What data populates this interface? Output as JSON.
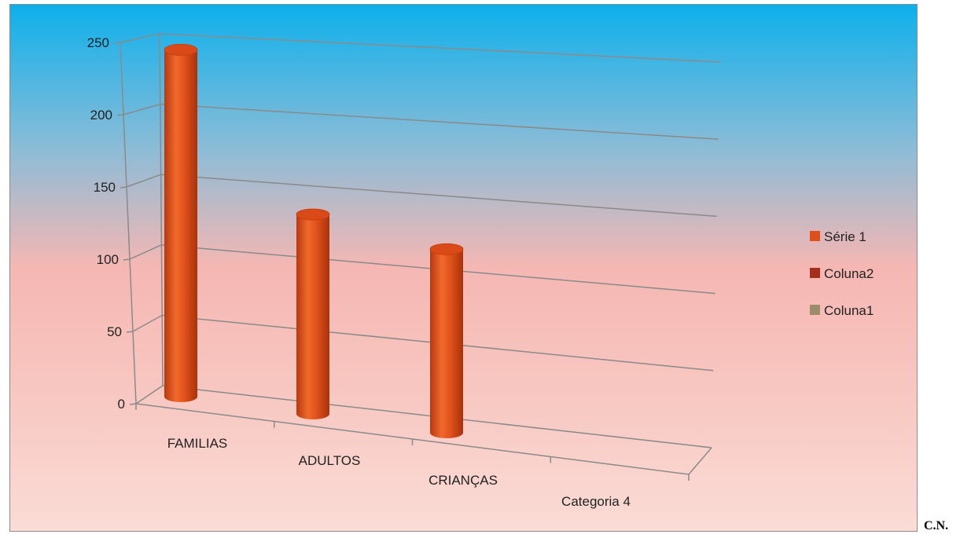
{
  "chart_data": {
    "type": "bar",
    "style": "3d-cylinder",
    "categories": [
      "FAMILIAS",
      "ADULTOS",
      "CRIANÇAS",
      "Categoria 4"
    ],
    "series": [
      {
        "name": "Série 1",
        "values": [
          240,
          138,
          127,
          null
        ],
        "color": "#e04e1c"
      },
      {
        "name": "Coluna2",
        "values": [
          null,
          null,
          null,
          null
        ],
        "color": "#a3301e"
      },
      {
        "name": "Coluna1",
        "values": [
          null,
          null,
          null,
          null
        ],
        "color": "#9e8b6c"
      }
    ],
    "y_ticks": [
      "0",
      "50",
      "100",
      "150",
      "200",
      "250"
    ],
    "ylim": [
      0,
      250
    ],
    "grid": true,
    "legend_position": "right",
    "background": "gradient blue to pink"
  },
  "footer_note": "C.N."
}
